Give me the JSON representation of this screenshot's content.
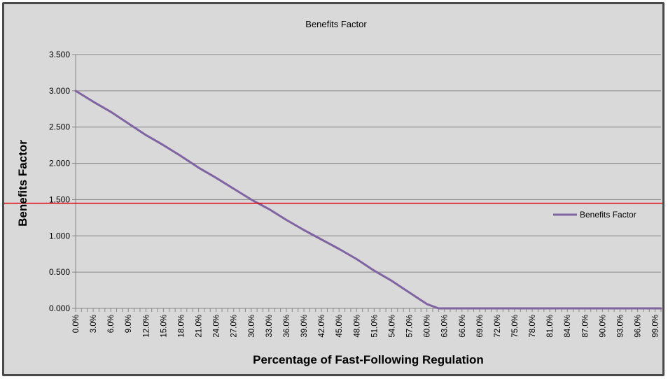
{
  "colors": {
    "background": "#d9d9d9",
    "frame": "#4a4a4a",
    "gridline": "#868686",
    "series": "#8064a2",
    "reference_line": "#e00000"
  },
  "chart_data": {
    "type": "line",
    "title": "Benefits Factor",
    "xlabel": "Percentage of Fast-Following Regulation",
    "ylabel": "Benefits Factor",
    "ylim": [
      0,
      3.5
    ],
    "ytick_labels": [
      "0.000",
      "0.500",
      "1.000",
      "1.500",
      "2.000",
      "2.500",
      "3.000",
      "3.500"
    ],
    "xtick_labels": [
      "0.0%",
      "3.0%",
      "6.0%",
      "9.0%",
      "12.0%",
      "15.0%",
      "18.0%",
      "21.0%",
      "24.0%",
      "27.0%",
      "30.0%",
      "33.0%",
      "36.0%",
      "39.0%",
      "42.0%",
      "45.0%",
      "48.0%",
      "51.0%",
      "54.0%",
      "57.0%",
      "60.0%",
      "63.0%",
      "66.0%",
      "69.0%",
      "72.0%",
      "75.0%",
      "78.0%",
      "81.0%",
      "84.0%",
      "87.0%",
      "90.0%",
      "93.0%",
      "96.0%",
      "99.0%"
    ],
    "x_unit": "percent",
    "x_range": [
      0,
      100
    ],
    "grid": true,
    "legend_position": "right",
    "series": [
      {
        "name": "Benefits Factor",
        "x": [
          0,
          3,
          6,
          9,
          12,
          15,
          18,
          21,
          24,
          27,
          30,
          33,
          36,
          39,
          42,
          45,
          48,
          51,
          54,
          57,
          60,
          62,
          63,
          66,
          69,
          72,
          75,
          78,
          81,
          84,
          87,
          90,
          93,
          96,
          99,
          100
        ],
        "y": [
          3.0,
          2.85,
          2.71,
          2.55,
          2.39,
          2.25,
          2.1,
          1.94,
          1.8,
          1.65,
          1.5,
          1.37,
          1.22,
          1.08,
          0.95,
          0.82,
          0.68,
          0.52,
          0.38,
          0.22,
          0.06,
          0.0,
          0.0,
          0.0,
          0.0,
          0.0,
          0.0,
          0.0,
          0.0,
          0.0,
          0.0,
          0.0,
          0.0,
          0.0,
          0.0,
          0.0
        ]
      }
    ],
    "reference_line": {
      "y": 1.45
    }
  }
}
